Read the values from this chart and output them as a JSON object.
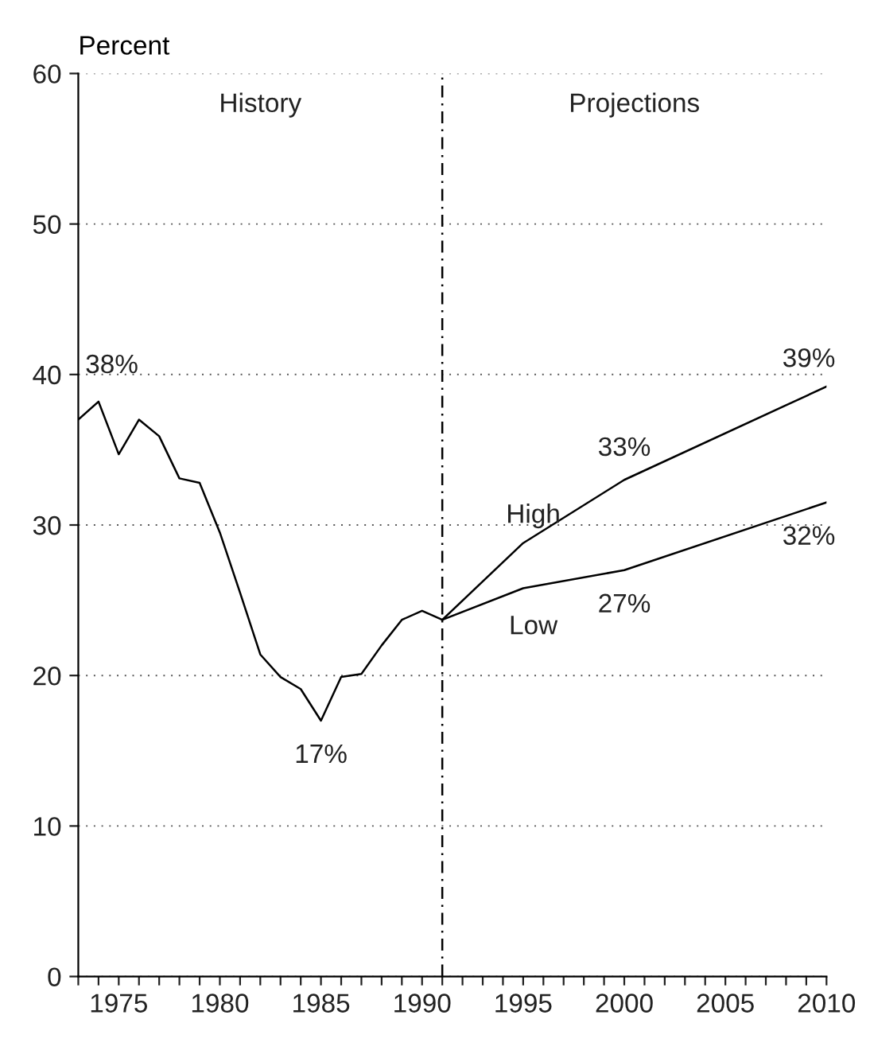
{
  "chart_data": {
    "type": "line",
    "ylabel": "Percent",
    "series": [
      {
        "color": "#000000",
        "x": [
          1973,
          1974,
          1975,
          1976,
          1977,
          1978,
          1979,
          1980,
          1981,
          1982,
          1983,
          1984,
          1985,
          1986,
          1987,
          1988,
          1989,
          1990,
          1991
        ],
        "values": [
          37.0,
          38.2,
          34.7,
          37.0,
          35.9,
          33.1,
          32.8,
          29.5,
          25.5,
          21.4,
          19.9,
          19.1,
          17.0,
          19.9,
          20.1,
          22.0,
          23.7,
          24.3,
          23.7
        ]
      },
      {
        "name": "High",
        "color": "#000000",
        "x": [
          1991,
          1995,
          2000,
          2010
        ],
        "values": [
          23.7,
          28.8,
          33.0,
          39.2
        ]
      },
      {
        "name": "Low",
        "color": "#000000",
        "x": [
          1991,
          1995,
          2000,
          2010
        ],
        "values": [
          23.7,
          25.8,
          27.0,
          31.5
        ]
      }
    ],
    "xlim": [
      1973,
      2010
    ],
    "ylim": [
      0,
      60
    ],
    "xticks": [
      {
        "value": 1973,
        "label": null
      },
      {
        "value": 1974,
        "label": null
      },
      1975,
      {
        "value": 1976,
        "label": null
      },
      {
        "value": 1977,
        "label": null
      },
      {
        "value": 1978,
        "label": null
      },
      {
        "value": 1979,
        "label": null
      },
      1980,
      {
        "value": 1981,
        "label": null
      },
      {
        "value": 1982,
        "label": null
      },
      {
        "value": 1983,
        "label": null
      },
      {
        "value": 1984,
        "label": null
      },
      1985,
      {
        "value": 1986,
        "label": null
      },
      {
        "value": 1987,
        "label": null
      },
      {
        "value": 1988,
        "label": null
      },
      {
        "value": 1989,
        "label": null
      },
      1990,
      {
        "value": 1991,
        "label": null
      },
      {
        "value": 1992,
        "label": null
      },
      {
        "value": 1993,
        "label": null
      },
      {
        "value": 1994,
        "label": null
      },
      1995,
      {
        "value": 1996,
        "label": null
      },
      {
        "value": 1997,
        "label": null
      },
      {
        "value": 1998,
        "label": null
      },
      {
        "value": 1999,
        "label": null
      },
      2000,
      {
        "value": 2001,
        "label": null
      },
      {
        "value": 2002,
        "label": null
      },
      {
        "value": 2003,
        "label": null
      },
      {
        "value": 2004,
        "label": null
      },
      2005,
      {
        "value": 2006,
        "label": null
      },
      {
        "value": 2007,
        "label": null
      },
      {
        "value": 2008,
        "label": null
      },
      {
        "value": 2009,
        "label": null
      },
      2010
    ],
    "yticks": [
      0,
      10,
      20,
      30,
      40,
      50,
      60
    ],
    "grid": "y",
    "line_style": "solid",
    "marker": "none",
    "ref_lines": [
      {
        "axis": "x",
        "value": 1991,
        "line_style": "dashed",
        "color": "#000000"
      }
    ],
    "annotations": [
      "History",
      "Projections",
      {
        "text": "38%",
        "x": 1974,
        "y": 38.2
      },
      {
        "text": "17%",
        "x": 1985,
        "y": 17.0
      },
      {
        "text": "33%",
        "x": 2000,
        "y": 33.0
      },
      {
        "text": "27%",
        "x": 2000,
        "y": 27.0
      },
      {
        "text": "39%",
        "x": 2010,
        "y": 39.2
      },
      {
        "text": "32%",
        "x": 2010,
        "y": 31.5
      }
    ]
  }
}
